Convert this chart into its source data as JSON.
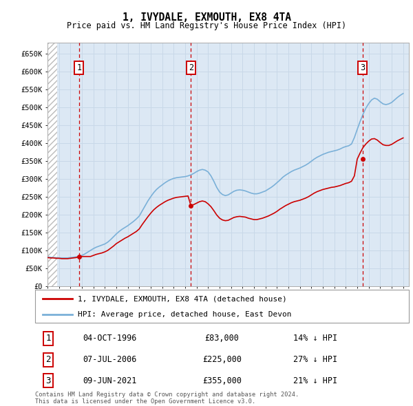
{
  "title": "1, IVYDALE, EXMOUTH, EX8 4TA",
  "subtitle": "Price paid vs. HM Land Registry's House Price Index (HPI)",
  "ylim": [
    0,
    680000
  ],
  "yticks": [
    0,
    50000,
    100000,
    150000,
    200000,
    250000,
    300000,
    350000,
    400000,
    450000,
    500000,
    550000,
    600000,
    650000
  ],
  "ytick_labels": [
    "£0",
    "£50K",
    "£100K",
    "£150K",
    "£200K",
    "£250K",
    "£300K",
    "£350K",
    "£400K",
    "£450K",
    "£500K",
    "£550K",
    "£600K",
    "£650K"
  ],
  "xlim_start": 1994.0,
  "xlim_end": 2025.5,
  "hpi_color": "#7ab0d8",
  "price_color": "#cc0000",
  "vline_color": "#cc0000",
  "grid_color": "#c8d8e8",
  "bg_color": "#dce8f4",
  "legend_label_price": "1, IVYDALE, EXMOUTH, EX8 4TA (detached house)",
  "legend_label_hpi": "HPI: Average price, detached house, East Devon",
  "transactions": [
    {
      "num": 1,
      "date": "04-OCT-1996",
      "price": 83000,
      "pct": "14%",
      "year": 1996.75
    },
    {
      "num": 2,
      "date": "07-JUL-2006",
      "price": 225000,
      "pct": "27%",
      "year": 2006.5
    },
    {
      "num": 3,
      "date": "09-JUN-2021",
      "price": 355000,
      "pct": "21%",
      "year": 2021.45
    }
  ],
  "footnote": "Contains HM Land Registry data © Crown copyright and database right 2024.\nThis data is licensed under the Open Government Licence v3.0.",
  "hpi_data_x": [
    1994.0,
    1994.25,
    1994.5,
    1994.75,
    1995.0,
    1995.25,
    1995.5,
    1995.75,
    1996.0,
    1996.25,
    1996.5,
    1996.75,
    1997.0,
    1997.25,
    1997.5,
    1997.75,
    1998.0,
    1998.25,
    1998.5,
    1998.75,
    1999.0,
    1999.25,
    1999.5,
    1999.75,
    2000.0,
    2000.25,
    2000.5,
    2000.75,
    2001.0,
    2001.25,
    2001.5,
    2001.75,
    2002.0,
    2002.25,
    2002.5,
    2002.75,
    2003.0,
    2003.25,
    2003.5,
    2003.75,
    2004.0,
    2004.25,
    2004.5,
    2004.75,
    2005.0,
    2005.25,
    2005.5,
    2005.75,
    2006.0,
    2006.25,
    2006.5,
    2006.75,
    2007.0,
    2007.25,
    2007.5,
    2007.75,
    2008.0,
    2008.25,
    2008.5,
    2008.75,
    2009.0,
    2009.25,
    2009.5,
    2009.75,
    2010.0,
    2010.25,
    2010.5,
    2010.75,
    2011.0,
    2011.25,
    2011.5,
    2011.75,
    2012.0,
    2012.25,
    2012.5,
    2012.75,
    2013.0,
    2013.25,
    2013.5,
    2013.75,
    2014.0,
    2014.25,
    2014.5,
    2014.75,
    2015.0,
    2015.25,
    2015.5,
    2015.75,
    2016.0,
    2016.25,
    2016.5,
    2016.75,
    2017.0,
    2017.25,
    2017.5,
    2017.75,
    2018.0,
    2018.25,
    2018.5,
    2018.75,
    2019.0,
    2019.25,
    2019.5,
    2019.75,
    2020.0,
    2020.25,
    2020.5,
    2020.75,
    2021.0,
    2021.25,
    2021.5,
    2021.75,
    2022.0,
    2022.25,
    2022.5,
    2022.75,
    2023.0,
    2023.25,
    2023.5,
    2023.75,
    2024.0,
    2024.25,
    2024.5,
    2024.75,
    2025.0
  ],
  "hpi_data_y": [
    82000,
    81000,
    80000,
    80000,
    79000,
    79000,
    79000,
    79000,
    80000,
    81000,
    82000,
    83000,
    86000,
    90000,
    95000,
    100000,
    105000,
    109000,
    112000,
    115000,
    118000,
    123000,
    130000,
    138000,
    146000,
    153000,
    159000,
    164000,
    169000,
    175000,
    181000,
    188000,
    196000,
    210000,
    224000,
    238000,
    250000,
    261000,
    270000,
    277000,
    283000,
    289000,
    294000,
    298000,
    301000,
    303000,
    304000,
    305000,
    306000,
    308000,
    311000,
    315000,
    320000,
    324000,
    326000,
    324000,
    319000,
    308000,
    293000,
    276000,
    263000,
    256000,
    253000,
    255000,
    260000,
    265000,
    268000,
    269000,
    268000,
    266000,
    263000,
    260000,
    258000,
    258000,
    260000,
    263000,
    266000,
    271000,
    276000,
    282000,
    289000,
    296000,
    304000,
    310000,
    315000,
    320000,
    324000,
    327000,
    330000,
    334000,
    338000,
    343000,
    349000,
    355000,
    360000,
    364000,
    368000,
    371000,
    374000,
    376000,
    378000,
    380000,
    383000,
    387000,
    390000,
    392000,
    397000,
    415000,
    438000,
    460000,
    480000,
    497000,
    510000,
    520000,
    525000,
    522000,
    515000,
    509000,
    507000,
    509000,
    513000,
    520000,
    527000,
    533000,
    538000
  ],
  "price_data_x": [
    1994.0,
    1994.25,
    1994.5,
    1994.75,
    1995.0,
    1995.25,
    1995.5,
    1995.75,
    1996.0,
    1996.25,
    1996.5,
    1996.75,
    1997.0,
    1997.25,
    1997.5,
    1997.75,
    1998.0,
    1998.25,
    1998.5,
    1998.75,
    1999.0,
    1999.25,
    1999.5,
    1999.75,
    2000.0,
    2000.25,
    2000.5,
    2000.75,
    2001.0,
    2001.25,
    2001.5,
    2001.75,
    2002.0,
    2002.25,
    2002.5,
    2002.75,
    2003.0,
    2003.25,
    2003.5,
    2003.75,
    2004.0,
    2004.25,
    2004.5,
    2004.75,
    2005.0,
    2005.25,
    2005.5,
    2005.75,
    2006.0,
    2006.25,
    2006.5,
    2006.75,
    2007.0,
    2007.25,
    2007.5,
    2007.75,
    2008.0,
    2008.25,
    2008.5,
    2008.75,
    2009.0,
    2009.25,
    2009.5,
    2009.75,
    2010.0,
    2010.25,
    2010.5,
    2010.75,
    2011.0,
    2011.25,
    2011.5,
    2011.75,
    2012.0,
    2012.25,
    2012.5,
    2012.75,
    2013.0,
    2013.25,
    2013.5,
    2013.75,
    2014.0,
    2014.25,
    2014.5,
    2014.75,
    2015.0,
    2015.25,
    2015.5,
    2015.75,
    2016.0,
    2016.25,
    2016.5,
    2016.75,
    2017.0,
    2017.25,
    2017.5,
    2017.75,
    2018.0,
    2018.25,
    2018.5,
    2018.75,
    2019.0,
    2019.25,
    2019.5,
    2019.75,
    2020.0,
    2020.25,
    2020.5,
    2020.75,
    2021.0,
    2021.25,
    2021.5,
    2021.75,
    2022.0,
    2022.25,
    2022.5,
    2022.75,
    2023.0,
    2023.25,
    2023.5,
    2023.75,
    2024.0,
    2024.25,
    2024.5,
    2024.75,
    2025.0
  ],
  "price_data_y": [
    80000,
    79000,
    79000,
    78000,
    78000,
    77000,
    77000,
    77000,
    78000,
    79000,
    80000,
    83000,
    83000,
    83000,
    83000,
    83000,
    86000,
    89000,
    91000,
    93000,
    96000,
    100000,
    106000,
    112000,
    119000,
    124000,
    129000,
    134000,
    138000,
    143000,
    148000,
    153000,
    160000,
    172000,
    183000,
    194000,
    204000,
    213000,
    220000,
    226000,
    231000,
    236000,
    240000,
    243000,
    246000,
    248000,
    249000,
    250000,
    251000,
    252000,
    225000,
    228000,
    232000,
    236000,
    238000,
    236000,
    230000,
    222000,
    211000,
    199000,
    190000,
    185000,
    183000,
    184000,
    188000,
    192000,
    194000,
    195000,
    194000,
    193000,
    190000,
    188000,
    186000,
    186000,
    188000,
    190000,
    193000,
    196000,
    200000,
    204000,
    209000,
    215000,
    220000,
    225000,
    229000,
    233000,
    236000,
    238000,
    240000,
    243000,
    246000,
    250000,
    255000,
    260000,
    264000,
    267000,
    270000,
    272000,
    274000,
    276000,
    277000,
    279000,
    281000,
    284000,
    287000,
    289000,
    293000,
    308000,
    355000,
    372000,
    387000,
    397000,
    405000,
    411000,
    412000,
    408000,
    401000,
    395000,
    393000,
    393000,
    396000,
    401000,
    406000,
    410000,
    414000
  ]
}
